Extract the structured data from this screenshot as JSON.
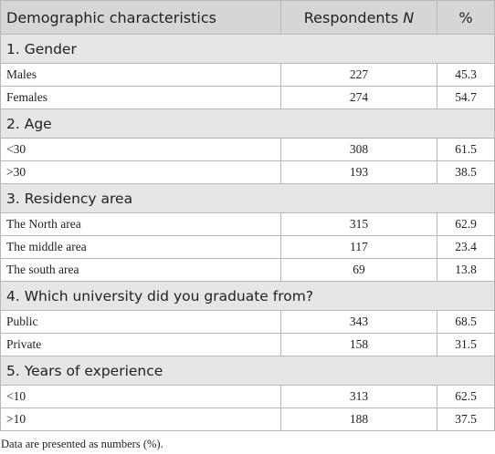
{
  "table": {
    "header": {
      "characteristic": "Demographic characteristics",
      "respondents": {
        "text": "Respondents",
        "variable": "N"
      },
      "percent": "%"
    },
    "sections": [
      {
        "title": "1. Gender",
        "rows": [
          [
            "Males",
            227,
            45.3
          ],
          [
            "Females",
            274,
            54.7
          ]
        ]
      },
      {
        "title": "2. Age",
        "rows": [
          [
            "<30",
            308,
            61.5
          ],
          [
            ">30",
            193,
            38.5
          ]
        ]
      },
      {
        "title": "3. Residency area",
        "rows": [
          [
            "The North area",
            315,
            62.9
          ],
          [
            "The middle area",
            117,
            23.4
          ],
          [
            "The south area",
            69,
            13.8
          ]
        ]
      },
      {
        "title": "4. Which university did you graduate from?",
        "rows": [
          [
            "Public",
            343,
            68.5
          ],
          [
            "Private",
            158,
            31.5
          ]
        ]
      },
      {
        "title": "5. Years of experience",
        "rows": [
          [
            "<10",
            313,
            62.5
          ],
          [
            ">10",
            188,
            37.5
          ]
        ]
      }
    ],
    "note": "Data are presented as numbers (%)."
  }
}
